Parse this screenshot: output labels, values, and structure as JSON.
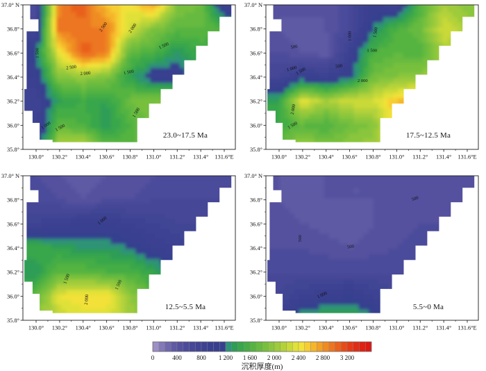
{
  "chart_data": {
    "type": "heatmap",
    "description": "Four contour maps of sediment thickness (m) in four geologic time intervals over lon 130.0-131.6E, lat 35.8-37.0N",
    "x": [
      130.0,
      130.2,
      130.4,
      130.6,
      130.8,
      131.0,
      131.2,
      131.4,
      131.6
    ],
    "y": [
      37.0,
      36.8,
      36.6,
      36.4,
      36.2,
      36.0,
      35.8
    ],
    "region_outline": [
      [
        129.95,
        37.0
      ],
      [
        131.66,
        37.0
      ],
      [
        131.66,
        36.9
      ],
      [
        131.56,
        36.9
      ],
      [
        131.56,
        36.78
      ],
      [
        131.46,
        36.78
      ],
      [
        131.46,
        36.66
      ],
      [
        131.36,
        36.66
      ],
      [
        131.36,
        36.54
      ],
      [
        131.26,
        36.54
      ],
      [
        131.26,
        36.42
      ],
      [
        131.16,
        36.42
      ],
      [
        131.16,
        36.3
      ],
      [
        131.06,
        36.3
      ],
      [
        131.06,
        36.18
      ],
      [
        130.96,
        36.18
      ],
      [
        130.96,
        36.06
      ],
      [
        130.86,
        36.06
      ],
      [
        130.86,
        35.86
      ],
      [
        130.14,
        35.86
      ],
      [
        130.14,
        35.88
      ],
      [
        130.03,
        35.88
      ],
      [
        130.03,
        36.02
      ],
      [
        129.97,
        36.02
      ],
      [
        129.97,
        36.12
      ],
      [
        129.9,
        36.12
      ],
      [
        129.9,
        36.3
      ],
      [
        129.92,
        36.3
      ],
      [
        129.92,
        36.78
      ],
      [
        130.02,
        36.78
      ],
      [
        130.02,
        36.88
      ],
      [
        129.95,
        36.88
      ]
    ],
    "panels": [
      {
        "label": "23.0~17.5 Ma",
        "values": [
          [
            500,
            2900,
            3100,
            2600,
            2400,
            2800,
            1900,
            1800,
            900
          ],
          [
            700,
            3000,
            2900,
            2900,
            2300,
            1900,
            1700,
            1700,
            1600
          ],
          [
            1200,
            2400,
            3100,
            2900,
            1700,
            1600,
            1300,
            1500,
            1500
          ],
          [
            1000,
            1900,
            2000,
            1900,
            1400,
            1000,
            1000,
            1500,
            1500
          ],
          [
            800,
            1400,
            1500,
            1400,
            1800,
            1900,
            1900,
            1900,
            1900
          ],
          [
            800,
            1700,
            1600,
            1300,
            1600,
            1900,
            1900,
            1900,
            1900
          ],
          [
            1000,
            2200,
            2300,
            1800,
            1700,
            1800,
            1800,
            1800,
            1800
          ]
        ],
        "contour_labels": [
          {
            "text": "1 500",
            "lon": 130.02,
            "lat": 36.6,
            "rot": -90
          },
          {
            "text": "2 500",
            "lon": 130.58,
            "lat": 36.81,
            "rot": -55
          },
          {
            "text": "2 000",
            "lon": 130.83,
            "lat": 36.8,
            "rot": -55
          },
          {
            "text": "1 500",
            "lon": 131.09,
            "lat": 36.65,
            "rot": -25
          },
          {
            "text": "2 500",
            "lon": 130.3,
            "lat": 36.47,
            "rot": -8
          },
          {
            "text": "2 000",
            "lon": 130.42,
            "lat": 36.42,
            "rot": -5
          },
          {
            "text": "1 500",
            "lon": 130.79,
            "lat": 36.43,
            "rot": -12
          },
          {
            "text": "1 500",
            "lon": 130.86,
            "lat": 36.1,
            "rot": -60
          },
          {
            "text": "1 000",
            "lon": 130.09,
            "lat": 35.99,
            "rot": -35
          },
          {
            "text": "1 500",
            "lon": 130.21,
            "lat": 35.97,
            "rot": -30
          }
        ]
      },
      {
        "label": "17.5~12.5 Ma",
        "values": [
          [
            400,
            500,
            400,
            600,
            1000,
            800,
            1600,
            2100,
            1900
          ],
          [
            400,
            300,
            400,
            600,
            1200,
            1600,
            1800,
            2300,
            2100
          ],
          [
            500,
            400,
            300,
            900,
            1600,
            1700,
            1600,
            2100,
            2200
          ],
          [
            700,
            1000,
            900,
            1100,
            1800,
            1900,
            2000,
            2100,
            2200
          ],
          [
            1400,
            2400,
            2100,
            2300,
            2300,
            2600,
            2700,
            2600,
            2600
          ],
          [
            1500,
            1700,
            1600,
            1800,
            1900,
            2600,
            2600,
            2500,
            2500
          ],
          [
            1800,
            2100,
            1900,
            2000,
            2100,
            2300,
            2300,
            2300,
            2300
          ]
        ],
        "contour_labels": [
          {
            "text": "500",
            "lon": 130.13,
            "lat": 36.64,
            "rot": -10
          },
          {
            "text": "1 000",
            "lon": 130.61,
            "lat": 36.74,
            "rot": -90
          },
          {
            "text": "1 500",
            "lon": 130.83,
            "lat": 36.77,
            "rot": -80
          },
          {
            "text": "1 500",
            "lon": 130.79,
            "lat": 36.61,
            "rot": 0
          },
          {
            "text": "500",
            "lon": 130.51,
            "lat": 36.48,
            "rot": -8
          },
          {
            "text": "1 000",
            "lon": 130.11,
            "lat": 36.46,
            "rot": -15
          },
          {
            "text": "1 500",
            "lon": 130.19,
            "lat": 36.44,
            "rot": -30
          },
          {
            "text": "2 000",
            "lon": 130.71,
            "lat": 36.36,
            "rot": 0
          },
          {
            "text": "2 000",
            "lon": 130.13,
            "lat": 36.13,
            "rot": -80
          },
          {
            "text": "1 500",
            "lon": 130.12,
            "lat": 35.99,
            "rot": -30
          }
        ]
      },
      {
        "label": "12.5~5.5 Ma",
        "values": [
          [
            500,
            400,
            300,
            400,
            400,
            500,
            500,
            500,
            500
          ],
          [
            600,
            500,
            400,
            500,
            500,
            600,
            600,
            600,
            600
          ],
          [
            800,
            900,
            1000,
            1000,
            900,
            800,
            700,
            700,
            700
          ],
          [
            1500,
            1400,
            1300,
            1300,
            1200,
            1000,
            900,
            800,
            800
          ],
          [
            1300,
            1700,
            1700,
            1600,
            1600,
            1400,
            1200,
            1000,
            1000
          ],
          [
            1700,
            2400,
            2500,
            2500,
            2000,
            1700,
            1400,
            1200,
            1200
          ],
          [
            2000,
            2200,
            2300,
            2300,
            2100,
            1800,
            1500,
            1300,
            1300
          ]
        ],
        "contour_labels": [
          {
            "text": "1 000",
            "lon": 130.57,
            "lat": 36.62,
            "rot": -40
          },
          {
            "text": "1 500",
            "lon": 130.27,
            "lat": 36.14,
            "rot": -70
          },
          {
            "text": "2 000",
            "lon": 130.44,
            "lat": 35.97,
            "rot": -85
          },
          {
            "text": "1 500",
            "lon": 130.71,
            "lat": 36.09,
            "rot": -65
          }
        ]
      },
      {
        "label": "5.5~0 Ma",
        "values": [
          [
            400,
            400,
            400,
            400,
            400,
            400,
            450,
            450,
            450
          ],
          [
            400,
            350,
            400,
            400,
            400,
            450,
            500,
            450,
            450
          ],
          [
            450,
            400,
            350,
            300,
            400,
            450,
            500,
            500,
            500
          ],
          [
            500,
            500,
            450,
            400,
            450,
            500,
            550,
            550,
            550
          ],
          [
            600,
            600,
            600,
            600,
            600,
            600,
            600,
            600,
            600
          ],
          [
            700,
            900,
            1000,
            1100,
            900,
            700,
            700,
            700,
            700
          ],
          [
            900,
            1400,
            1500,
            1500,
            1300,
            800,
            700,
            700,
            700
          ]
        ],
        "contour_labels": [
          {
            "text": "500",
            "lon": 131.16,
            "lat": 36.8,
            "rot": -20
          },
          {
            "text": "500",
            "lon": 130.19,
            "lat": 36.48,
            "rot": -90
          },
          {
            "text": "500",
            "lon": 130.61,
            "lat": 36.4,
            "rot": -8
          },
          {
            "text": "1 000",
            "lon": 130.37,
            "lat": 36.0,
            "rot": -25
          }
        ]
      }
    ],
    "axes": {
      "x_tick_labels": [
        "130.0°",
        "130.2°",
        "130.4°",
        "130.6°",
        "130.8°",
        "131.0°",
        "131.2°",
        "131.4°",
        "131.6°E"
      ],
      "y_tick_labels": [
        "37.0° N",
        "36.8°",
        "36.6°",
        "36.4°",
        "36.2°",
        "36.0°",
        "35.8°"
      ],
      "x_range": [
        130.0,
        131.6
      ],
      "y_range": [
        35.8,
        37.0
      ]
    },
    "colorbar": {
      "title": "沉积厚度(m)",
      "min": 0,
      "max": 3600,
      "cell_step": 100,
      "tick_values": [
        0,
        400,
        800,
        1200,
        1600,
        2000,
        2400,
        2800,
        3200
      ],
      "tick_labels": [
        "0",
        "400",
        "800",
        "1 200",
        "1 600",
        "2 000",
        "2 400",
        "2 800",
        "3 200"
      ],
      "cell_colors": [
        "#9d8fc4",
        "#8379b6",
        "#6f68ac",
        "#5f5aa4",
        "#54519f",
        "#4c4b9b",
        "#464797",
        "#414494",
        "#3d4292",
        "#3a4090",
        "#383f8f",
        "#36408f",
        "#2f9377",
        "#2f9d57",
        "#38a64b",
        "#45ad44",
        "#55b441",
        "#66ba3f",
        "#77c03d",
        "#8ac63c",
        "#9ecb3b",
        "#b3d23a",
        "#c9d939",
        "#e0e139",
        "#f2e138",
        "#f7cd32",
        "#f5b62c",
        "#f2a027",
        "#ef8b23",
        "#ec7620",
        "#e9611d",
        "#e64c1a",
        "#e33b17",
        "#e12d15",
        "#df2113",
        "#dd1812"
      ]
    },
    "style_colors": {
      "axis_line": "#1a1a1a",
      "label_text": "#111111",
      "contour_line": "#7a7a7a"
    }
  }
}
